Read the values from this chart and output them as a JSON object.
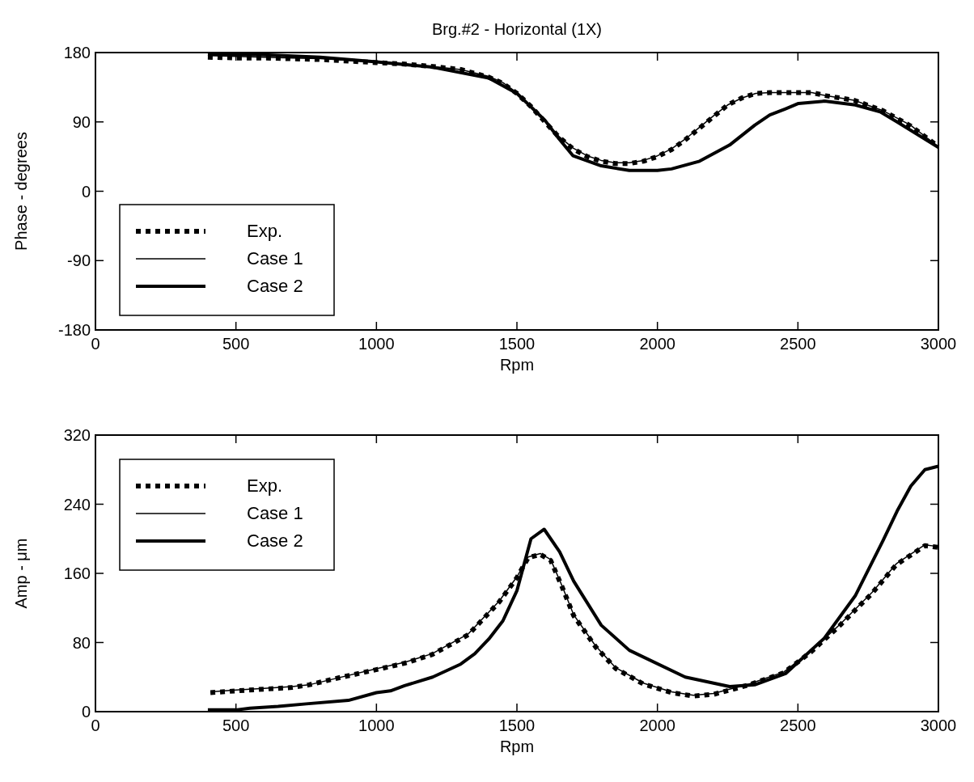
{
  "chart_data": [
    {
      "type": "line",
      "title": "Brg.#2 - Horizontal (1X)",
      "xlabel": "Rpm",
      "ylabel": "Phase - degrees",
      "xlim": [
        0,
        3000
      ],
      "xticks": [
        0,
        500,
        1000,
        1500,
        2000,
        2500,
        3000
      ],
      "ylim": [
        -180,
        180
      ],
      "yticks": [
        -180,
        -90,
        0,
        90,
        180
      ],
      "grid": false,
      "legend": "bottom left",
      "series": [
        {
          "name": "Exp.",
          "color": "#000000",
          "line_style": "dotted",
          "x": [
            400,
            500,
            600,
            700,
            800,
            900,
            1000,
            1100,
            1200,
            1300,
            1400,
            1450,
            1500,
            1550,
            1600,
            1650,
            1700,
            1750,
            1800,
            1850,
            1900,
            1950,
            2000,
            2050,
            2100,
            2150,
            2200,
            2250,
            2300,
            2350,
            2400,
            2500,
            2550,
            2600,
            2700,
            2800,
            2900,
            3000
          ],
          "values": [
            174,
            173,
            173,
            172,
            171,
            169,
            167,
            165,
            162,
            158,
            148,
            140,
            127,
            110,
            90,
            70,
            55,
            45,
            39,
            36,
            36,
            39,
            45,
            54,
            67,
            82,
            97,
            112,
            121,
            127,
            128,
            128,
            128,
            124,
            118,
            105,
            85,
            58
          ]
        },
        {
          "name": "Case 1",
          "color": "#000000",
          "line_style": "solid",
          "x": [
            400,
            500,
            600,
            700,
            800,
            900,
            1000,
            1100,
            1200,
            1300,
            1400,
            1450,
            1500,
            1550,
            1600,
            1650,
            1700,
            1750,
            1800,
            1850,
            1900,
            1950,
            2000,
            2050,
            2100,
            2150,
            2200,
            2250,
            2300,
            2350,
            2400,
            2500,
            2550,
            2600,
            2700,
            2800,
            2900,
            3000
          ],
          "values": [
            176,
            175,
            174,
            173,
            172,
            170,
            168,
            165,
            162,
            158,
            149,
            141,
            128,
            111,
            91,
            71,
            56,
            46,
            40,
            37,
            37,
            40,
            46,
            55,
            68,
            83,
            98,
            112,
            121,
            127,
            128,
            128,
            128,
            124,
            118,
            105,
            86,
            58
          ]
        },
        {
          "name": "Case 2",
          "color": "#000000",
          "line_style": "solid",
          "x": [
            400,
            600,
            800,
            1000,
            1200,
            1400,
            1500,
            1600,
            1650,
            1700,
            1800,
            1900,
            2000,
            2050,
            2150,
            2257,
            2347,
            2400,
            2456,
            2502,
            2595,
            2704,
            2793,
            2853,
            3000
          ],
          "values": [
            178,
            177,
            174,
            168,
            161,
            147,
            127,
            92,
            68,
            46,
            33,
            27,
            27,
            29,
            39,
            60,
            86,
            99,
            107,
            114,
            117,
            112,
            103,
            90,
            57
          ]
        }
      ]
    },
    {
      "type": "line",
      "xlabel": "Rpm",
      "ylabel": "Amp - μm",
      "xlim": [
        0,
        3000
      ],
      "xticks": [
        0,
        500,
        1000,
        1500,
        2000,
        2500,
        3000
      ],
      "ylim": [
        0,
        320
      ],
      "yticks": [
        0,
        80,
        160,
        240,
        320
      ],
      "grid": false,
      "legend": "top left",
      "series": [
        {
          "name": "Exp.",
          "color": "#000000",
          "line_style": "dotted",
          "x": [
            409,
            500,
            600,
            700,
            760,
            850,
            1005,
            1100,
            1198,
            1327,
            1437,
            1500,
            1540,
            1583,
            1620,
            1660,
            1702,
            1780,
            1851,
            1950,
            2050,
            2128,
            2200,
            2327,
            2450,
            2546,
            2650,
            2764,
            2850,
            2952,
            3000
          ],
          "values": [
            22,
            24,
            26,
            28,
            31,
            38,
            49,
            56,
            66,
            89,
            127,
            155,
            178,
            182,
            175,
            145,
            111,
            75,
            50,
            32,
            22,
            18,
            20,
            31,
            45,
            69,
            100,
            137,
            170,
            192,
            190
          ]
        },
        {
          "name": "Case 1",
          "color": "#000000",
          "line_style": "solid",
          "x": [
            409,
            500,
            600,
            700,
            760,
            850,
            1005,
            1100,
            1198,
            1327,
            1437,
            1500,
            1540,
            1583,
            1620,
            1660,
            1702,
            1780,
            1851,
            1950,
            2050,
            2128,
            2200,
            2327,
            2450,
            2546,
            2650,
            2764,
            2850,
            2952,
            3000
          ],
          "values": [
            23,
            25,
            27,
            29,
            31,
            38,
            50,
            57,
            67,
            90,
            128,
            156,
            179,
            183,
            176,
            146,
            112,
            76,
            51,
            33,
            23,
            19,
            21,
            32,
            46,
            70,
            101,
            138,
            171,
            193,
            191
          ]
        },
        {
          "name": "Case 2",
          "color": "#000000",
          "line_style": "solid",
          "x": [
            400,
            500,
            550,
            650,
            750,
            900,
            1000,
            1050,
            1100,
            1200,
            1300,
            1350,
            1400,
            1450,
            1500,
            1550,
            1597,
            1652,
            1702,
            1800,
            1900,
            2099,
            2257,
            2346,
            2456,
            2594,
            2704,
            2803,
            2853,
            2902,
            2952,
            3000
          ],
          "values": [
            2,
            2,
            4,
            6,
            9,
            13,
            22,
            24,
            30,
            40,
            55,
            67,
            84,
            105,
            140,
            200,
            211,
            185,
            151,
            100,
            71,
            40,
            29,
            31,
            44,
            85,
            134,
            198,
            232,
            261,
            280,
            284
          ]
        }
      ]
    }
  ]
}
